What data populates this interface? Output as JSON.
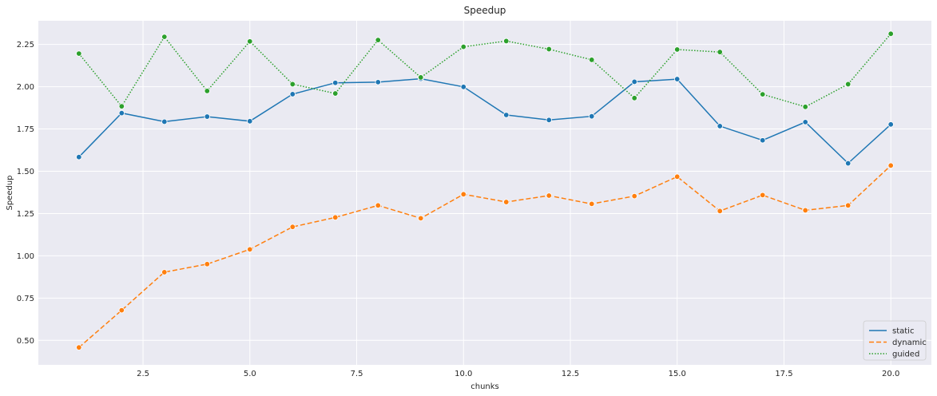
{
  "chart_data": {
    "type": "line",
    "title": "Speedup",
    "xlabel": "chunks",
    "ylabel": "Speedup",
    "xlim": [
      0.05,
      20.95
    ],
    "ylim": [
      0.355,
      2.39
    ],
    "xticks": [
      2.5,
      5.0,
      7.5,
      10.0,
      12.5,
      15.0,
      17.5,
      20.0
    ],
    "xtick_labels": [
      "2.5",
      "5.0",
      "7.5",
      "10.0",
      "12.5",
      "15.0",
      "17.5",
      "20.0"
    ],
    "yticks": [
      0.5,
      0.75,
      1.0,
      1.25,
      1.5,
      1.75,
      2.0,
      2.25
    ],
    "ytick_labels": [
      "0.50",
      "0.75",
      "1.00",
      "1.25",
      "1.50",
      "1.75",
      "2.00",
      "2.25"
    ],
    "grid": true,
    "legend_position": "bottom-right",
    "x": [
      1,
      2,
      3,
      4,
      5,
      6,
      7,
      8,
      9,
      10,
      11,
      12,
      13,
      14,
      15,
      16,
      17,
      18,
      19,
      20
    ],
    "series": [
      {
        "name": "static",
        "color": "#1f77b4",
        "dash": "solid",
        "values": [
          1.584,
          1.844,
          1.793,
          1.823,
          1.796,
          1.956,
          2.023,
          2.027,
          2.047,
          1.999,
          1.833,
          1.803,
          1.825,
          2.029,
          2.045,
          1.767,
          1.683,
          1.791,
          1.547,
          1.777
        ]
      },
      {
        "name": "dynamic",
        "color": "#ff7f0e",
        "dash": "dashed",
        "values": [
          0.458,
          0.678,
          0.903,
          0.951,
          1.038,
          1.171,
          1.227,
          1.298,
          1.222,
          1.364,
          1.318,
          1.356,
          1.307,
          1.353,
          1.468,
          1.265,
          1.359,
          1.269,
          1.298,
          1.534
        ]
      },
      {
        "name": "guided",
        "color": "#2ca02c",
        "dash": "dotted",
        "values": [
          2.196,
          1.884,
          2.295,
          1.975,
          2.268,
          2.015,
          1.96,
          2.276,
          2.055,
          2.236,
          2.27,
          2.222,
          2.159,
          1.933,
          2.22,
          2.205,
          1.955,
          1.881,
          2.015,
          2.313
        ]
      }
    ]
  }
}
